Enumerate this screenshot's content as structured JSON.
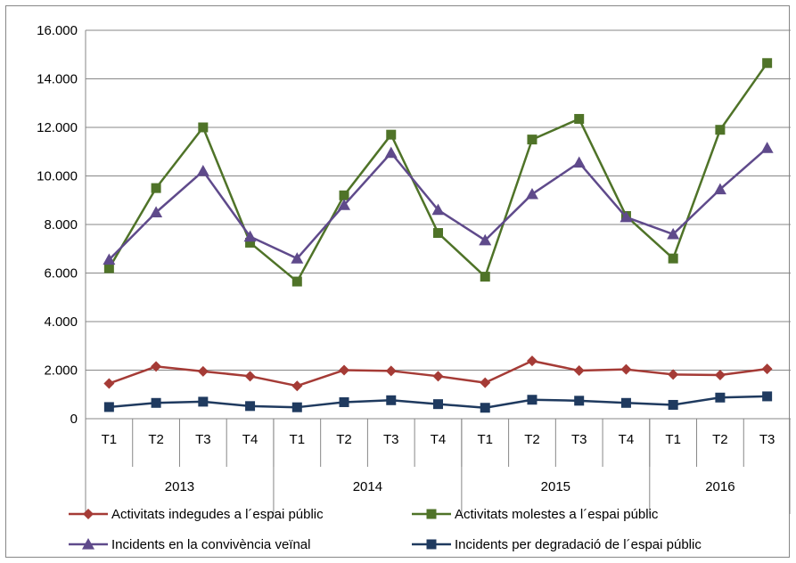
{
  "chart_data": {
    "type": "line",
    "title": "",
    "xlabel": "",
    "ylabel": "",
    "ylim": [
      0,
      16000
    ],
    "yticks": [
      0,
      2000,
      4000,
      6000,
      8000,
      10000,
      12000,
      14000,
      16000
    ],
    "ytick_labels": [
      "0",
      "2.000",
      "4.000",
      "6.000",
      "8.000",
      "10.000",
      "12.000",
      "14.000",
      "16.000"
    ],
    "grid": "horizontal",
    "legend_position": "bottom",
    "categories": [
      "T1",
      "T2",
      "T3",
      "T4",
      "T1",
      "T2",
      "T3",
      "T4",
      "T1",
      "T2",
      "T3",
      "T4",
      "T1",
      "T2",
      "T3"
    ],
    "groups": [
      {
        "label": "2013",
        "count": 4
      },
      {
        "label": "2014",
        "count": 4
      },
      {
        "label": "2015",
        "count": 4
      },
      {
        "label": "2016",
        "count": 3
      }
    ],
    "series": [
      {
        "name": "Activitats indegudes a l´espai públic",
        "color": "#A53B36",
        "marker": "diamond",
        "values": [
          1450,
          2150,
          1950,
          1750,
          1350,
          2000,
          1970,
          1750,
          1480,
          2380,
          1980,
          2030,
          1820,
          1800,
          2050
        ]
      },
      {
        "name": "Activitats molestes a l´espai públic",
        "color": "#4F7328",
        "marker": "square",
        "values": [
          6200,
          9500,
          12000,
          7250,
          5650,
          9200,
          11700,
          7650,
          5850,
          11500,
          12350,
          8350,
          6600,
          11900,
          14650
        ]
      },
      {
        "name": "Incidents en la convivència veïnal",
        "color": "#5F4A8B",
        "marker": "triangle",
        "values": [
          6550,
          8500,
          10200,
          7500,
          6600,
          8800,
          10950,
          8600,
          7350,
          9250,
          10550,
          8300,
          7600,
          9450,
          11150
        ]
      },
      {
        "name": "Incidents per degradació de l´espai públic",
        "color": "#1F3A5F",
        "marker": "square",
        "values": [
          480,
          650,
          700,
          520,
          470,
          680,
          760,
          600,
          450,
          780,
          740,
          650,
          570,
          870,
          920
        ]
      }
    ]
  }
}
